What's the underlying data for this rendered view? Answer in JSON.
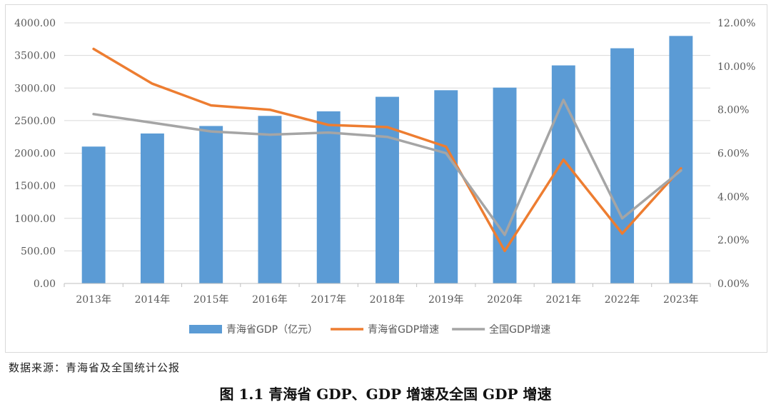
{
  "chart_data": {
    "type": "bar+line",
    "categories": [
      "2013年",
      "2014年",
      "2015年",
      "2016年",
      "2017年",
      "2018年",
      "2019年",
      "2020年",
      "2021年",
      "2022年",
      "2023年"
    ],
    "series": [
      {
        "name": "青海省GDP（亿元）",
        "kind": "bar",
        "axis": "left",
        "color": "#5b9bd5",
        "values": [
          2101,
          2302,
          2417,
          2572,
          2642,
          2865,
          2966,
          3006,
          3347,
          3610,
          3799
        ]
      },
      {
        "name": "青海省GDP增速",
        "kind": "line",
        "axis": "right",
        "color": "#ed7d31",
        "values": [
          10.8,
          9.2,
          8.2,
          8.0,
          7.3,
          7.2,
          6.3,
          1.5,
          5.7,
          2.3,
          5.3
        ]
      },
      {
        "name": "全国GDP增速",
        "kind": "line",
        "axis": "right",
        "color": "#a5a5a5",
        "values": [
          7.8,
          7.4,
          7.0,
          6.85,
          6.95,
          6.75,
          6.0,
          2.24,
          8.45,
          3.0,
          5.2
        ]
      }
    ],
    "y_left": {
      "range": [
        0,
        4000
      ],
      "step": 500,
      "ticks": [
        "0.00",
        "500.00",
        "1000.00",
        "1500.00",
        "2000.00",
        "2500.00",
        "3000.00",
        "3500.00",
        "4000.00"
      ]
    },
    "y_right": {
      "range": [
        0,
        12
      ],
      "step": 2,
      "ticks": [
        "0.00%",
        "2.00%",
        "4.00%",
        "6.00%",
        "8.00%",
        "10.00%",
        "12.00%"
      ]
    },
    "grid": true,
    "legend_position": "bottom"
  },
  "source_note": "数据来源：青海省及全国统计公报",
  "caption": "图 1.1   青海省 GDP、GDP 增速及全国 GDP 增速"
}
